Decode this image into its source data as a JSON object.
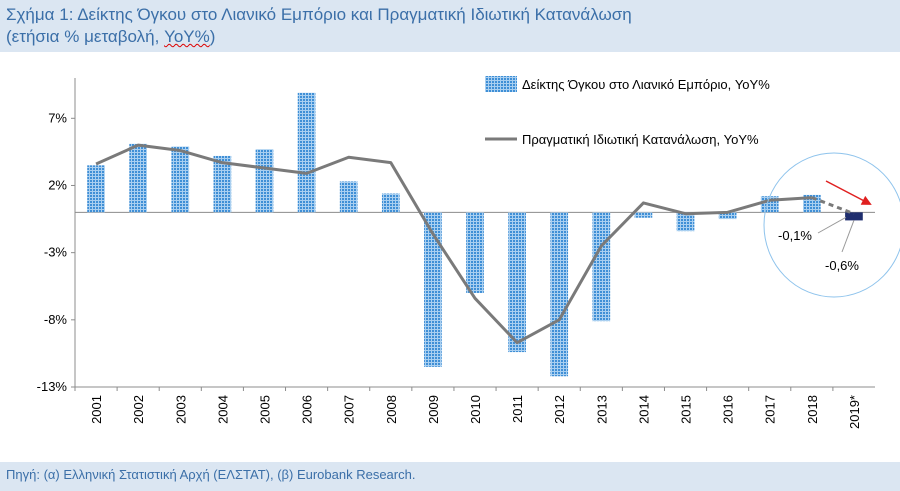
{
  "header": {
    "title_line1": "Σχήμα 1: Δείκτης Όγκου στο Λιανικό Εμπόριο και Πραγματική Ιδιωτική Κατανάλωση",
    "title_line2_prefix": "(ετήσια % μεταβολή, ",
    "title_line2_marked": "YoY%",
    "title_line2_suffix": ")"
  },
  "source": "Πηγή: (α) Ελληνική Στατιστική Αρχή (ΕΛΣΤΑΤ), (β) Eurobank Research.",
  "colors": {
    "bar": "#4f9ad8",
    "bar_highlight": "#1f2e6e",
    "line": "#7a7a7a",
    "arrow": "#e02020",
    "circle": "#8ec3ec"
  },
  "chart_data": {
    "type": "bar",
    "categories": [
      "2001",
      "2002",
      "2003",
      "2004",
      "2005",
      "2006",
      "2007",
      "2008",
      "2009",
      "2010",
      "2011",
      "2012",
      "2013",
      "2014",
      "2015",
      "2016",
      "2017",
      "2018",
      "2019*"
    ],
    "ylim": [
      -13,
      10
    ],
    "yticks": [
      7,
      2,
      -3,
      -8,
      -13
    ],
    "ytick_labels": [
      "7%",
      "2%",
      "-3%",
      "-8%",
      "-13%"
    ],
    "series": [
      {
        "name": "Δείκτης Όγκου στο Λιανικό Εμπόριο, YoY%",
        "kind": "bar",
        "values": [
          3.5,
          5.1,
          4.9,
          4.2,
          4.7,
          8.9,
          2.3,
          1.4,
          -11.5,
          -6.0,
          -10.4,
          -12.2,
          -8.1,
          -0.4,
          -1.4,
          -0.5,
          1.2,
          1.3,
          -0.6
        ]
      },
      {
        "name": "Πραγματική Ιδιωτική Κατανάλωση, YoY%",
        "kind": "line",
        "values": [
          3.6,
          5.0,
          4.6,
          3.7,
          3.3,
          2.9,
          4.1,
          3.7,
          -1.6,
          -6.4,
          -9.7,
          -8.0,
          -2.5,
          0.7,
          -0.1,
          0.0,
          0.9,
          1.1,
          -0.1
        ]
      }
    ],
    "annotations": [
      "-0,1%",
      "-0,6%"
    ],
    "legend_position": "top-right",
    "grid": false
  }
}
